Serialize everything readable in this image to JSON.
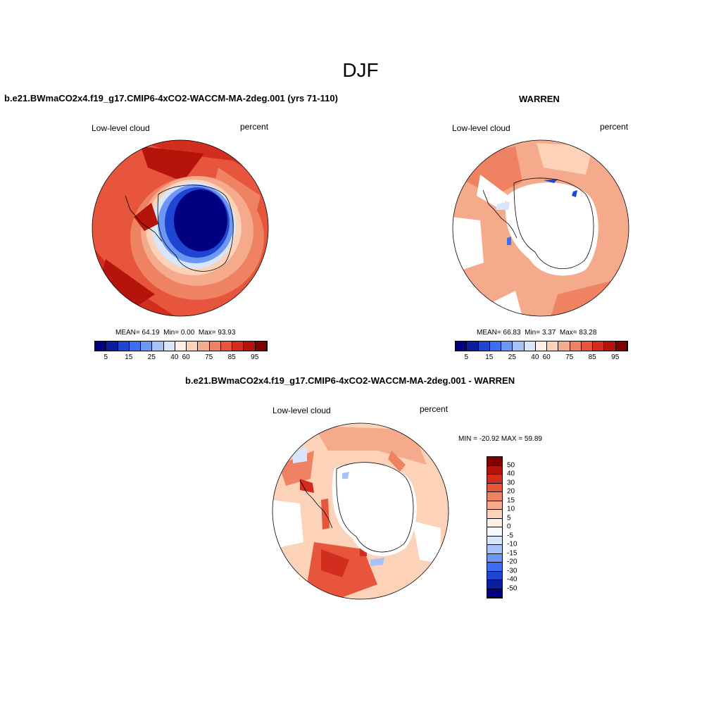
{
  "title": "DJF",
  "scale_colors": [
    "#000080",
    "#0a1ea0",
    "#1e46d2",
    "#3c6ef0",
    "#6e96f5",
    "#a5c3fa",
    "#d7e6fc",
    "#fff0e6",
    "#fcd2b9",
    "#f5aa8c",
    "#f08264",
    "#e6553c",
    "#d22d1e",
    "#b4140a",
    "#820000"
  ],
  "diff_colors": [
    "#000080",
    "#0a1ea0",
    "#1e46d2",
    "#3c6ef0",
    "#6e96f5",
    "#a5c3fa",
    "#d7e6fc",
    "#f5f8fc",
    "#fff0e6",
    "#fcd2b9",
    "#f5aa8c",
    "#f08264",
    "#e6553c",
    "#d22d1e",
    "#b4140a",
    "#820000"
  ],
  "panels": [
    {
      "title": "b.e21.BWmaCO2x4.f19_g17.CMIP6-4xCO2-WACCM-MA-2deg.001 (yrs 71-110)",
      "variable": "Low-level cloud",
      "units": "percent",
      "stats": {
        "mean": "MEAN=  64.19",
        "min": "Min=   0.00",
        "max": "Max=  93.93"
      },
      "colorbar_labels": [
        "5",
        "15",
        "25",
        "40",
        "60",
        "75",
        "85",
        "95"
      ]
    },
    {
      "title": "WARREN",
      "variable": "Low-level cloud",
      "units": "percent",
      "stats": {
        "mean": "MEAN=  66.83",
        "min": "Min=   3.37",
        "max": "Max=  83.28"
      },
      "colorbar_labels": [
        "5",
        "15",
        "25",
        "40",
        "60",
        "75",
        "85",
        "95"
      ]
    },
    {
      "title": "b.e21.BWmaCO2x4.f19_g17.CMIP6-4xCO2-WACCM-MA-2deg.001 - WARREN",
      "variable": "Low-level cloud",
      "units": "percent",
      "minmax": "MIN = -20.92 MAX =  59.89",
      "colorbar_labels": [
        "50",
        "40",
        "30",
        "20",
        "15",
        "10",
        "5",
        "0",
        "-5",
        "-10",
        "-15",
        "-20",
        "-30",
        "-40",
        "-50"
      ]
    }
  ]
}
